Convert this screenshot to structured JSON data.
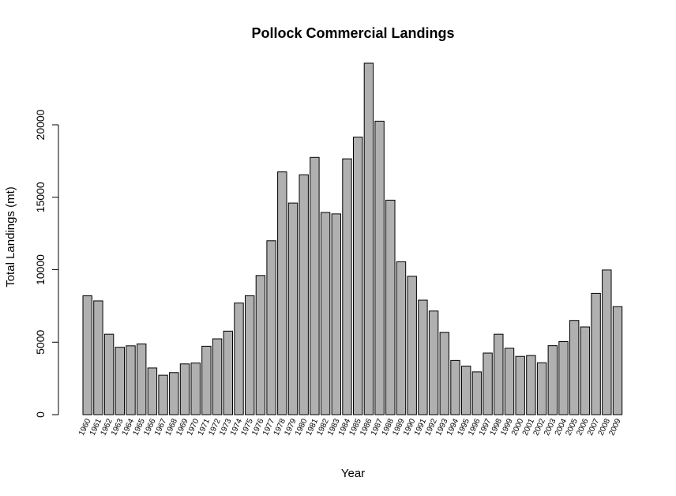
{
  "chart_data": {
    "type": "bar",
    "title": "Pollock Commercial Landings",
    "xlabel": "Year",
    "ylabel": "Total Landings (mt)",
    "ylim": [
      0,
      25000
    ],
    "yticks": [
      "0",
      "5000",
      "10000",
      "15000",
      "20000"
    ],
    "grid": false,
    "bar_color": "#b0b0b0",
    "categories": [
      "1960",
      "1961",
      "1962",
      "1963",
      "1964",
      "1965",
      "1966",
      "1967",
      "1968",
      "1969",
      "1970",
      "1971",
      "1972",
      "1973",
      "1974",
      "1975",
      "1976",
      "1977",
      "1978",
      "1979",
      "1980",
      "1981",
      "1982",
      "1983",
      "1984",
      "1985",
      "1986",
      "1987",
      "1988",
      "1989",
      "1990",
      "1991",
      "1992",
      "1993",
      "1994",
      "1995",
      "1996",
      "1997",
      "1998",
      "1999",
      "2000",
      "2001",
      "2002",
      "2003",
      "2004",
      "2005",
      "2006",
      "2007",
      "2008",
      "2009"
    ],
    "values": [
      8200,
      7850,
      5550,
      4650,
      4750,
      4880,
      3220,
      2720,
      2900,
      3500,
      3560,
      4720,
      5230,
      5760,
      7700,
      8200,
      9600,
      12000,
      16750,
      14600,
      16550,
      17750,
      13950,
      13850,
      17650,
      19150,
      24250,
      20250,
      14800,
      10550,
      9550,
      7900,
      7150,
      5680,
      3740,
      3350,
      2950,
      4250,
      5550,
      4580,
      4020,
      4080,
      3580,
      4760,
      5040,
      6500,
      6050,
      8370,
      9980,
      7450
    ]
  }
}
